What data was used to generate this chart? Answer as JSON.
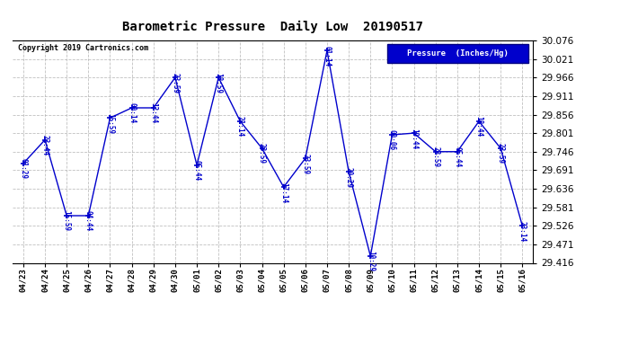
{
  "title": "Barometric Pressure  Daily Low  20190517",
  "copyright": "Copyright 2019 Cartronics.com",
  "legend_label": "Pressure  (Inches/Hg)",
  "background_color": "#ffffff",
  "plot_bg_color": "#ffffff",
  "grid_color": "#b0b0b0",
  "line_color": "#0000cc",
  "text_color": "#0000cc",
  "title_color": "#000000",
  "dates": [
    "04/23",
    "04/24",
    "04/25",
    "04/26",
    "04/27",
    "04/28",
    "04/29",
    "04/30",
    "05/01",
    "05/02",
    "05/03",
    "05/04",
    "05/05",
    "05/06",
    "05/07",
    "05/08",
    "05/09",
    "05/10",
    "05/11",
    "05/12",
    "05/13",
    "05/14",
    "05/15",
    "05/16"
  ],
  "values": [
    29.711,
    29.781,
    29.556,
    29.556,
    29.846,
    29.876,
    29.876,
    29.966,
    29.706,
    29.966,
    29.836,
    29.756,
    29.641,
    29.726,
    30.046,
    29.686,
    29.436,
    29.796,
    29.801,
    29.746,
    29.746,
    29.836,
    29.756,
    29.526
  ],
  "point_labels": [
    "01:29",
    "23:44",
    "15:59",
    "04:44",
    "15:59",
    "00:14",
    "12:44",
    "23:59",
    "05:44",
    "18:59",
    "21:14",
    "23:59",
    "17:14",
    "23:59",
    "01:14",
    "20:29",
    "10:29",
    "00:06",
    "19:44",
    "23:59",
    "05:44",
    "18:44",
    "23:59",
    "23:14"
  ],
  "ylim_min": 29.416,
  "ylim_max": 30.076,
  "yticks": [
    29.416,
    29.471,
    29.526,
    29.581,
    29.636,
    29.691,
    29.746,
    29.801,
    29.856,
    29.911,
    29.966,
    30.021,
    30.076
  ],
  "label_rotations": [
    270,
    270,
    270,
    270,
    270,
    270,
    270,
    270,
    270,
    270,
    270,
    270,
    270,
    270,
    270,
    270,
    270,
    270,
    270,
    270,
    270,
    270,
    270,
    270
  ]
}
